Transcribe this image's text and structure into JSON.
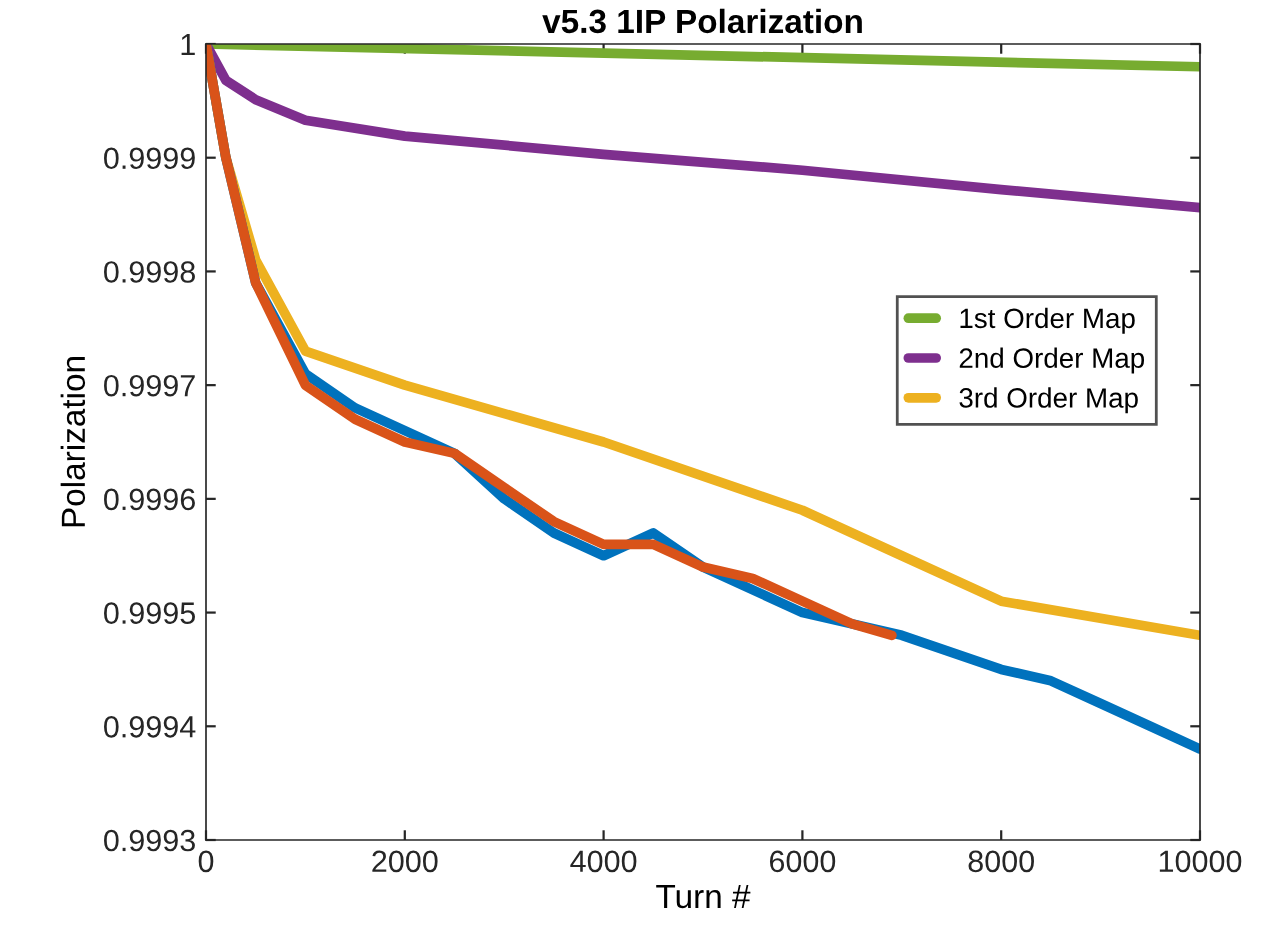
{
  "chart_data": {
    "type": "line",
    "title": "v5.3 1IP Polarization",
    "xlabel": "Turn #",
    "ylabel": "Polarization",
    "xlim": [
      0,
      10000
    ],
    "xticks": [
      0,
      2000,
      4000,
      6000,
      8000,
      10000
    ],
    "ylim": [
      0.9993,
      1
    ],
    "yticks": [
      0.9993,
      0.9994,
      0.9995,
      0.9996,
      0.9997,
      0.9998,
      0.9999,
      1
    ],
    "grid": false,
    "legend": "right",
    "series": [
      {
        "name": "1st Order Map",
        "color": "#77ac30",
        "x": [
          0,
          10000
        ],
        "values": [
          1,
          0.99998
        ]
      },
      {
        "name": "2nd Order Map",
        "color": "#7e2f8e",
        "x": [
          0,
          200,
          500,
          1000,
          2000,
          4000,
          6000,
          8000,
          10000
        ],
        "values": [
          1,
          0.999968,
          0.999951,
          0.999933,
          0.999919,
          0.999903,
          0.999889,
          0.999872,
          0.999856
        ]
      },
      {
        "name": "3rd Order Map",
        "color": "#edb120",
        "x": [
          0,
          200,
          500,
          1000,
          2000,
          4000,
          6000,
          7000,
          8000,
          10000
        ],
        "values": [
          1,
          0.9999,
          0.99981,
          0.99973,
          0.9997,
          0.99965,
          0.99959,
          0.99955,
          0.99951,
          0.99948
        ]
      },
      {
        "color": "#0072bd",
        "x": [
          0,
          200,
          500,
          1000,
          1500,
          2000,
          2500,
          3000,
          3500,
          4000,
          4500,
          5000,
          6000,
          7000,
          8000,
          8500,
          9000,
          9500,
          10000
        ],
        "values": [
          1,
          0.9999,
          0.99979,
          0.99971,
          0.99968,
          0.99966,
          0.99964,
          0.9996,
          0.99957,
          0.99955,
          0.99957,
          0.99954,
          0.9995,
          0.99948,
          0.99945,
          0.99944,
          0.99942,
          0.9994,
          0.99938
        ]
      },
      {
        "color": "#d95319",
        "x": [
          0,
          200,
          500,
          1000,
          1500,
          2000,
          2500,
          3000,
          3500,
          4000,
          4500,
          5000,
          5500,
          6000,
          6500,
          6900
        ],
        "values": [
          1,
          0.9999,
          0.99979,
          0.9997,
          0.99967,
          0.99965,
          0.99964,
          0.99961,
          0.99958,
          0.99956,
          0.99956,
          0.99954,
          0.99953,
          0.99951,
          0.99949,
          0.99948
        ]
      }
    ]
  }
}
